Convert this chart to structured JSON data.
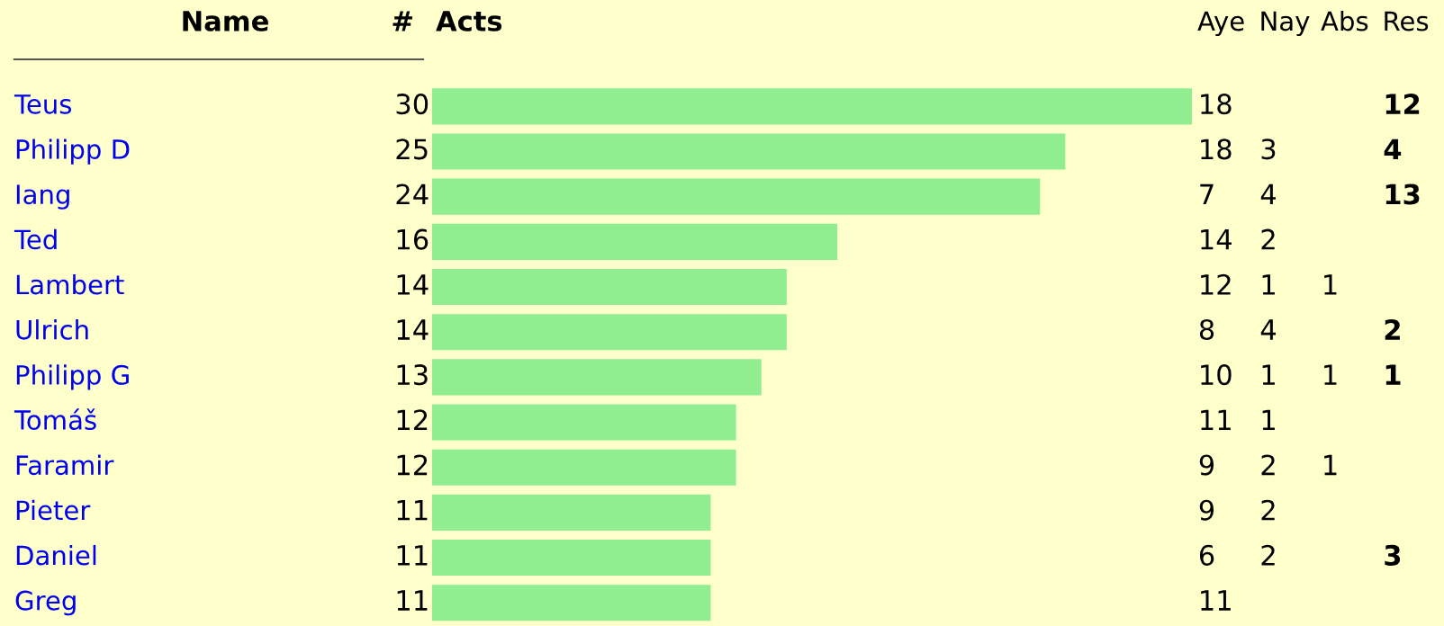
{
  "chart_data": [
    {
      "type": "bar",
      "orientation": "horizontal",
      "ylabel": "Name",
      "xlabel": "Acts",
      "color": "#90ee90",
      "annotations": [
        "#"
      ],
      "categories": [
        "Teus",
        "Philipp D",
        "Iang",
        "Ted",
        "Lambert",
        "Ulrich",
        "Philipp G",
        "Tomáš",
        "Faramir",
        "Pieter",
        "Daniel",
        "Greg"
      ],
      "values": [
        30,
        25,
        24,
        16,
        14,
        14,
        13,
        12,
        12,
        11,
        11,
        11
      ],
      "data_labels": true
    },
    {
      "type": "heatmap",
      "data_labels": true,
      "categories": [
        "Aye",
        "Nay",
        "Abs",
        "Res"
      ],
      "y_categories": [
        null,
        null,
        null,
        null,
        null,
        null,
        null,
        null,
        null,
        null,
        null,
        null
      ],
      "cells": [
        [
          18,
          null,
          null,
          12
        ],
        [
          18,
          3,
          null,
          4
        ],
        [
          7,
          4,
          null,
          13
        ],
        [
          14,
          2,
          null,
          null
        ],
        [
          12,
          1,
          1,
          null
        ],
        [
          8,
          4,
          null,
          2
        ],
        [
          10,
          1,
          1,
          1
        ],
        [
          11,
          1,
          null,
          null
        ],
        [
          9,
          2,
          1,
          null
        ],
        [
          9,
          2,
          null,
          null
        ],
        [
          6,
          2,
          null,
          3
        ],
        [
          11,
          null,
          null,
          null
        ]
      ]
    }
  ]
}
